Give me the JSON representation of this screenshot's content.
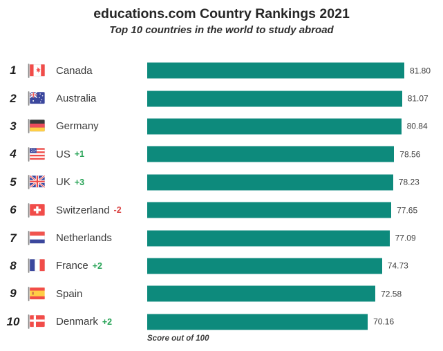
{
  "header": {
    "title": "educations.com Country Rankings 2021",
    "subtitle": "Top 10 countries in the world to study abroad"
  },
  "footer": {
    "note": "Score out of 100"
  },
  "colors": {
    "bar": "#0d8a7c",
    "rank_up": "#27a356",
    "rank_down": "#da4343"
  },
  "chart_data": {
    "type": "bar",
    "title": "educations.com Country Rankings 2021",
    "subtitle": "Top 10 countries in the world to study abroad",
    "xlabel": "Score out of 100",
    "orientation": "horizontal",
    "xlim": [
      0,
      100
    ],
    "grid": false,
    "legend": "none",
    "categories": [
      "Canada",
      "Australia",
      "Germany",
      "US",
      "UK",
      "Switzerland",
      "Netherlands",
      "France",
      "Spain",
      "Denmark"
    ],
    "values": [
      81.8,
      81.07,
      80.84,
      78.56,
      78.23,
      77.65,
      77.09,
      74.73,
      72.58,
      70.16
    ],
    "rows": [
      {
        "rank": "1",
        "country": "Canada",
        "change": "",
        "value": "81.80",
        "flag_icon": "flag-canada"
      },
      {
        "rank": "2",
        "country": "Australia",
        "change": "",
        "value": "81.07",
        "flag_icon": "flag-australia"
      },
      {
        "rank": "3",
        "country": "Germany",
        "change": "",
        "value": "80.84",
        "flag_icon": "flag-germany"
      },
      {
        "rank": "4",
        "country": "US",
        "change": "+1",
        "value": "78.56",
        "flag_icon": "flag-us"
      },
      {
        "rank": "5",
        "country": "UK",
        "change": "+3",
        "value": "78.23",
        "flag_icon": "flag-uk"
      },
      {
        "rank": "6",
        "country": "Switzerland",
        "change": "-2",
        "value": "77.65",
        "flag_icon": "flag-switzerland"
      },
      {
        "rank": "7",
        "country": "Netherlands",
        "change": "",
        "value": "77.09",
        "flag_icon": "flag-netherlands"
      },
      {
        "rank": "8",
        "country": "France",
        "change": "+2",
        "value": "74.73",
        "flag_icon": "flag-france"
      },
      {
        "rank": "9",
        "country": "Spain",
        "change": "",
        "value": "72.58",
        "flag_icon": "flag-spain"
      },
      {
        "rank": "10",
        "country": "Denmark",
        "change": "+2",
        "value": "70.16",
        "flag_icon": "flag-denmark"
      }
    ]
  }
}
